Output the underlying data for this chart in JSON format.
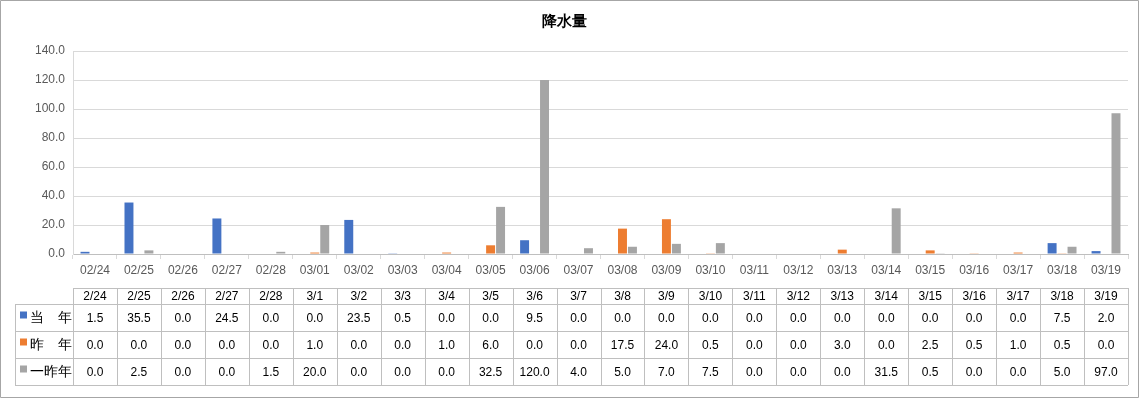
{
  "chart_data": {
    "type": "bar",
    "title": "降水量",
    "categories": [
      "02/24",
      "02/25",
      "02/26",
      "02/27",
      "02/28",
      "03/01",
      "03/02",
      "03/03",
      "03/04",
      "03/05",
      "03/06",
      "03/07",
      "03/08",
      "03/09",
      "03/10",
      "03/11",
      "03/12",
      "03/13",
      "03/14",
      "03/15",
      "03/16",
      "03/17",
      "03/18",
      "03/19"
    ],
    "series": [
      {
        "name": "当　年",
        "color": "#4472c4",
        "values": [
          1.5,
          35.5,
          0,
          24.5,
          0,
          0,
          23.5,
          0.5,
          0,
          0,
          9.5,
          0,
          0,
          0,
          0,
          0,
          0,
          0,
          0,
          0,
          0,
          0,
          7.5,
          2.0
        ],
        "value_labels": [
          "1.5",
          "35.5",
          "0.0",
          "24.5",
          "0.0",
          "0.0",
          "23.5",
          "0.5",
          "0.0",
          "0.0",
          "9.5",
          "0.0",
          "0.0",
          "0.0",
          "0.0",
          "0.0",
          "0.0",
          "0.0",
          "0.0",
          "0.0",
          "0.0",
          "0.0",
          "7.5",
          "2.0"
        ]
      },
      {
        "name": "昨　年",
        "color": "#ed7d31",
        "values": [
          0,
          0,
          0,
          0,
          0,
          1.0,
          0,
          0,
          1.0,
          6.0,
          0,
          0,
          17.5,
          24.0,
          0.5,
          0,
          0,
          3.0,
          0,
          2.5,
          0.5,
          1.0,
          0.5,
          0
        ],
        "value_labels": [
          "0.0",
          "0.0",
          "0.0",
          "0.0",
          "0.0",
          "1.0",
          "0.0",
          "0.0",
          "1.0",
          "6.0",
          "0.0",
          "0.0",
          "17.5",
          "24.0",
          "0.5",
          "0.0",
          "0.0",
          "3.0",
          "0.0",
          "2.5",
          "0.5",
          "1.0",
          "0.5",
          "0.0"
        ]
      },
      {
        "name": "一昨年",
        "color": "#a5a5a5",
        "values": [
          0,
          2.5,
          0,
          0,
          1.5,
          20.0,
          0,
          0,
          0,
          32.5,
          120.0,
          4.0,
          5.0,
          7.0,
          7.5,
          0,
          0,
          0,
          31.5,
          0.5,
          0,
          0,
          5.0,
          97.0
        ],
        "value_labels": [
          "0.0",
          "2.5",
          "0.0",
          "0.0",
          "1.5",
          "20.0",
          "0.0",
          "0.0",
          "0.0",
          "32.5",
          "120.0",
          "4.0",
          "5.0",
          "7.0",
          "7.5",
          "0.0",
          "0.0",
          "0.0",
          "31.5",
          "0.5",
          "0.0",
          "0.0",
          "5.0",
          "97.0"
        ]
      }
    ],
    "ylim": [
      0,
      140
    ],
    "yticks": [
      {
        "value": 0,
        "label": "0.0"
      },
      {
        "value": 20,
        "label": "20.0"
      },
      {
        "value": 40,
        "label": "40.0"
      },
      {
        "value": 60,
        "label": "60.0"
      },
      {
        "value": 80,
        "label": "80.0"
      },
      {
        "value": 100,
        "label": "100.0"
      },
      {
        "value": 120,
        "label": "120.0"
      },
      {
        "value": 140,
        "label": "140.0"
      }
    ],
    "grid": "y",
    "legend": "bottom",
    "annotations": [
      "2/24",
      "2/25",
      "2/26",
      "2/27",
      "2/28",
      "3/1",
      "3/2",
      "3/3",
      "3/4",
      "3/5",
      "3/6",
      "3/7",
      "3/8",
      "3/9",
      "3/10",
      "3/11",
      "3/12",
      "3/13",
      "3/14",
      "3/15",
      "3/16",
      "3/17",
      "3/18",
      "3/19"
    ]
  }
}
